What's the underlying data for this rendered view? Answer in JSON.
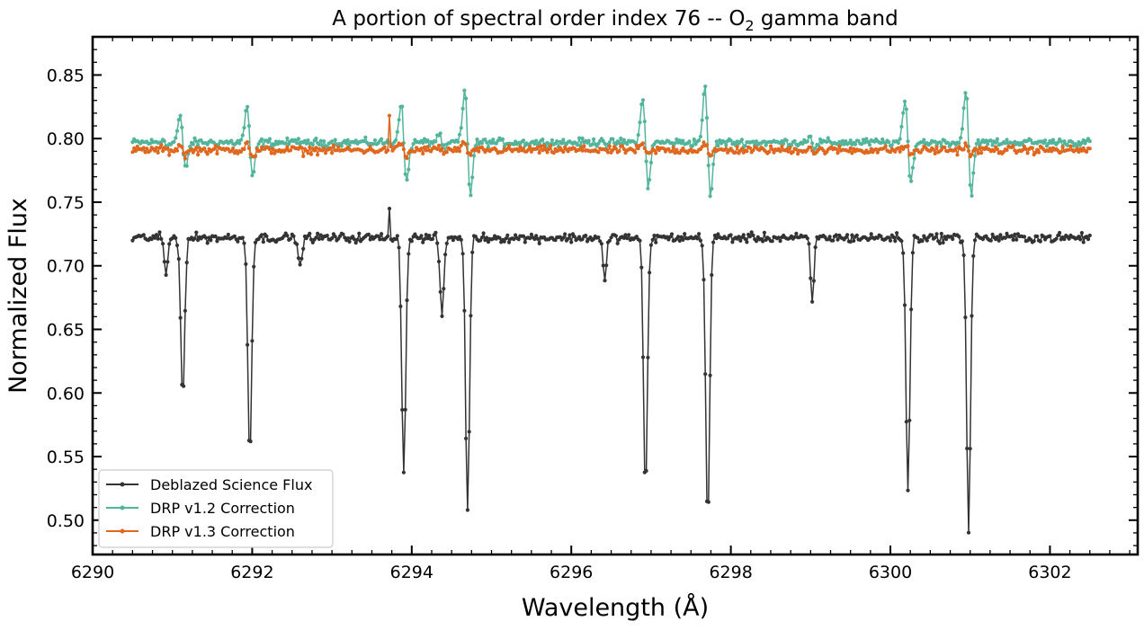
{
  "chart_data": {
    "type": "line",
    "title_main": "A portion of spectral order index 76 -- O",
    "title_sub": "2",
    "title_end": " gamma band",
    "xlabel": "Wavelength (Å)",
    "ylabel": "Normalized Flux",
    "xlim": [
      6290.0,
      6303.1
    ],
    "ylim": [
      0.473,
      0.88
    ],
    "x_ticks": [
      6290,
      6292,
      6294,
      6296,
      6298,
      6300,
      6302
    ],
    "x_tick_labels": [
      "6290",
      "6292",
      "6294",
      "6296",
      "6298",
      "6300",
      "6302"
    ],
    "y_ticks": [
      0.5,
      0.55,
      0.6,
      0.65,
      0.7,
      0.75,
      0.8,
      0.85
    ],
    "y_tick_labels": [
      "0.50",
      "0.55",
      "0.60",
      "0.65",
      "0.70",
      "0.75",
      "0.80",
      "0.85"
    ],
    "grid": false,
    "legend_position": "lower-left",
    "x_range": [
      6290.5,
      6302.5
    ],
    "x_step": 0.02,
    "lines": [
      {
        "center": 6290.92,
        "depth_science": 0.03,
        "width": 0.03,
        "v12_amp": 0.004,
        "v13_amp": 0.002
      },
      {
        "center": 6291.13,
        "depth_science": 0.125,
        "width": 0.035,
        "v12_amp": 0.03,
        "v13_amp": 0.006
      },
      {
        "center": 6291.97,
        "depth_science": 0.17,
        "width": 0.035,
        "v12_amp": 0.042,
        "v13_amp": 0.01
      },
      {
        "center": 6292.6,
        "depth_science": 0.025,
        "width": 0.03,
        "v12_amp": 0.004,
        "v13_amp": 0.002
      },
      {
        "center": 6293.9,
        "depth_science": 0.185,
        "width": 0.035,
        "v12_amp": 0.046,
        "v13_amp": 0.008
      },
      {
        "center": 6294.38,
        "depth_science": 0.06,
        "width": 0.035,
        "v12_amp": 0.01,
        "v13_amp": 0.003
      },
      {
        "center": 6294.7,
        "depth_science": 0.215,
        "width": 0.035,
        "v12_amp": 0.06,
        "v13_amp": 0.008
      },
      {
        "center": 6296.42,
        "depth_science": 0.035,
        "width": 0.03,
        "v12_amp": 0.005,
        "v13_amp": 0.002
      },
      {
        "center": 6296.93,
        "depth_science": 0.2,
        "width": 0.035,
        "v12_amp": 0.05,
        "v13_amp": 0.006
      },
      {
        "center": 6297.71,
        "depth_science": 0.225,
        "width": 0.035,
        "v12_amp": 0.062,
        "v13_amp": 0.009
      },
      {
        "center": 6299.02,
        "depth_science": 0.05,
        "width": 0.03,
        "v12_amp": 0.01,
        "v13_amp": 0.004
      },
      {
        "center": 6300.22,
        "depth_science": 0.2,
        "width": 0.035,
        "v12_amp": 0.048,
        "v13_amp": 0.005
      },
      {
        "center": 6300.98,
        "depth_science": 0.23,
        "width": 0.035,
        "v12_amp": 0.06,
        "v13_amp": 0.006
      }
    ],
    "series": [
      {
        "name": "Deblazed Science Flux",
        "continuum": 0.722,
        "noise": 0.0035,
        "color": "#333333"
      },
      {
        "name": "DRP v1.2 Correction",
        "continuum": 0.797,
        "noise": 0.003,
        "color": "#52b59b"
      },
      {
        "name": "DRP v1.3 Correction",
        "continuum": 0.791,
        "noise": 0.003,
        "color": "#e0671e"
      }
    ],
    "spikes": [
      {
        "series": 0,
        "x": 6293.72,
        "y": 0.745
      },
      {
        "series": 2,
        "x": 6293.72,
        "y": 0.818
      }
    ]
  }
}
